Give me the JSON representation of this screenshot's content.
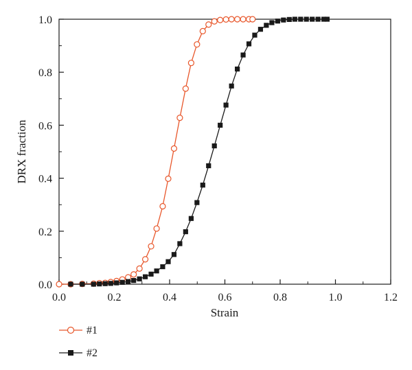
{
  "chart_data": {
    "type": "line",
    "title": "",
    "xlabel": "Strain",
    "ylabel": "DRX fraction",
    "xlim": [
      0.0,
      1.2
    ],
    "ylim": [
      0.0,
      1.0
    ],
    "xticks": [
      "0.0",
      "0.2",
      "0.4",
      "0.6",
      "0.8",
      "1.0",
      "1.2"
    ],
    "yticks": [
      "0.0",
      "0.2",
      "0.4",
      "0.6",
      "0.8",
      "1.0"
    ],
    "grid": false,
    "legend_position": "bottom-left, below plot",
    "series": [
      {
        "name": "#1",
        "color": "#e8562a",
        "marker": "open-circle",
        "x": [
          0.0,
          0.042,
          0.084,
          0.125,
          0.146,
          0.167,
          0.187,
          0.208,
          0.229,
          0.25,
          0.27,
          0.291,
          0.312,
          0.333,
          0.353,
          0.375,
          0.395,
          0.416,
          0.437,
          0.458,
          0.478,
          0.499,
          0.52,
          0.541,
          0.562,
          0.583,
          0.604,
          0.624,
          0.645,
          0.666,
          0.687,
          0.7
        ],
        "y": [
          0.0,
          0.0,
          0.001,
          0.002,
          0.004,
          0.005,
          0.008,
          0.012,
          0.018,
          0.026,
          0.037,
          0.059,
          0.094,
          0.143,
          0.21,
          0.294,
          0.398,
          0.512,
          0.628,
          0.738,
          0.835,
          0.905,
          0.955,
          0.98,
          0.992,
          0.997,
          0.999,
          1.0,
          1.0,
          1.0,
          1.0,
          1.0
        ]
      },
      {
        "name": "#2",
        "color": "#1a1a1a",
        "marker": "filled-square",
        "x": [
          0.042,
          0.084,
          0.125,
          0.146,
          0.167,
          0.187,
          0.208,
          0.229,
          0.25,
          0.27,
          0.291,
          0.312,
          0.333,
          0.353,
          0.375,
          0.395,
          0.416,
          0.437,
          0.458,
          0.478,
          0.499,
          0.52,
          0.541,
          0.562,
          0.583,
          0.604,
          0.624,
          0.645,
          0.666,
          0.687,
          0.708,
          0.729,
          0.75,
          0.77,
          0.791,
          0.812,
          0.833,
          0.853,
          0.874,
          0.895,
          0.916,
          0.937,
          0.958,
          0.97
        ],
        "y": [
          0.0,
          0.0,
          0.0,
          0.001,
          0.002,
          0.003,
          0.005,
          0.007,
          0.01,
          0.014,
          0.02,
          0.028,
          0.038,
          0.05,
          0.066,
          0.085,
          0.112,
          0.153,
          0.198,
          0.248,
          0.308,
          0.374,
          0.447,
          0.522,
          0.6,
          0.676,
          0.748,
          0.812,
          0.865,
          0.907,
          0.94,
          0.962,
          0.977,
          0.987,
          0.993,
          0.997,
          0.999,
          1.0,
          1.0,
          1.0,
          1.0,
          1.0,
          1.0,
          1.0
        ]
      }
    ]
  }
}
